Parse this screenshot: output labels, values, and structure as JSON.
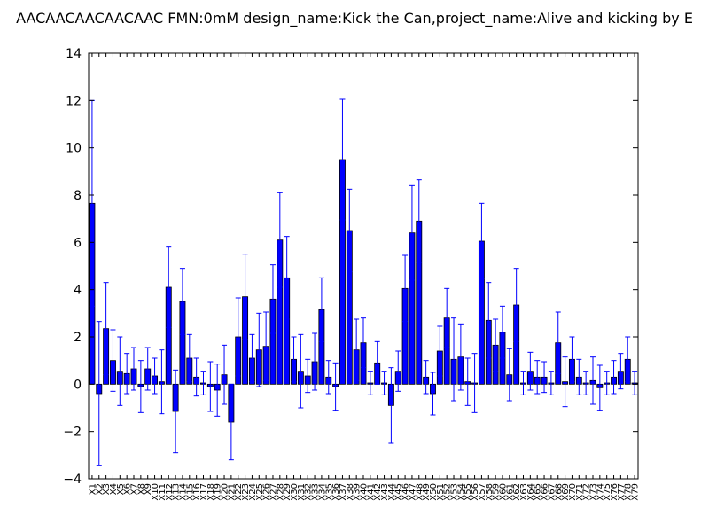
{
  "chart_data": {
    "type": "bar",
    "title": "AACAACAACAACAAC  FMN:0mM  design_name:Kick the Can,project_name:Alive and kicking by E",
    "xlabel": "",
    "ylabel": "",
    "ylim": [
      -4,
      14
    ],
    "yticks": [
      -4,
      -2,
      0,
      2,
      4,
      6,
      8,
      10,
      12,
      14
    ],
    "grid": false,
    "bar_color": "#0000ff",
    "error_color": "#0000ff",
    "categories": [
      "X1",
      "X2",
      "X3",
      "X4",
      "X5",
      "X6",
      "X7",
      "X8",
      "X9",
      "X10",
      "X11",
      "X12",
      "X13",
      "X14",
      "X15",
      "X16",
      "X17",
      "X18",
      "X19",
      "X20",
      "X21",
      "X22",
      "X23",
      "X24",
      "X25",
      "X26",
      "X27",
      "X28",
      "X29",
      "X30",
      "X31",
      "X32",
      "X33",
      "X34",
      "X35",
      "X36",
      "X37",
      "X38",
      "X39",
      "X40",
      "X41",
      "X42",
      "X43",
      "X44",
      "X45",
      "X46",
      "X47",
      "X48",
      "X49",
      "X50",
      "X51",
      "X52",
      "X53",
      "X54",
      "X55",
      "X56",
      "X57",
      "X58",
      "X59",
      "X60",
      "X61",
      "X62",
      "X63",
      "X64",
      "X65",
      "X66",
      "X67",
      "X68",
      "X69",
      "X70",
      "X71",
      "X72",
      "X73",
      "X74",
      "X75",
      "X76",
      "X77",
      "X78",
      "X79"
    ],
    "values": [
      7.65,
      -0.4,
      2.35,
      1.0,
      0.55,
      0.45,
      0.65,
      -0.1,
      0.65,
      0.35,
      0.1,
      4.1,
      -1.15,
      3.5,
      1.1,
      0.3,
      0.05,
      -0.1,
      -0.25,
      0.4,
      -1.6,
      2.0,
      3.7,
      1.1,
      1.45,
      1.6,
      3.6,
      6.1,
      4.5,
      1.05,
      0.55,
      0.35,
      0.95,
      3.15,
      0.3,
      -0.1,
      9.5,
      6.5,
      1.45,
      1.75,
      0.05,
      0.9,
      0.05,
      -0.9,
      0.55,
      4.05,
      6.4,
      6.9,
      0.3,
      -0.4,
      1.4,
      2.8,
      1.05,
      1.15,
      0.1,
      0.05,
      6.05,
      2.7,
      1.65,
      2.2,
      0.4,
      3.35,
      0.05,
      0.55,
      0.3,
      0.3,
      0.05,
      1.75,
      0.1,
      1.05,
      0.3,
      0.05,
      0.15,
      -0.15,
      0.05,
      0.3,
      0.55,
      1.05,
      0.05
    ],
    "errors": [
      4.35,
      3.05,
      1.95,
      1.3,
      1.45,
      0.85,
      0.9,
      1.1,
      0.9,
      0.75,
      1.35,
      1.7,
      1.75,
      1.4,
      1.0,
      0.8,
      0.5,
      1.05,
      1.1,
      1.25,
      1.6,
      1.65,
      1.8,
      1.0,
      1.55,
      1.45,
      1.45,
      2.0,
      1.75,
      0.95,
      1.55,
      0.7,
      1.2,
      1.35,
      0.7,
      1.0,
      2.55,
      1.75,
      1.3,
      1.05,
      0.5,
      0.9,
      0.5,
      1.6,
      0.85,
      1.4,
      2.0,
      1.75,
      0.7,
      0.9,
      1.05,
      1.25,
      1.75,
      1.4,
      1.0,
      1.25,
      1.6,
      1.6,
      1.1,
      1.1,
      1.1,
      1.55,
      0.5,
      0.8,
      0.7,
      0.65,
      0.5,
      1.3,
      1.05,
      0.95,
      0.75,
      0.5,
      1.0,
      0.95,
      0.5,
      0.7,
      0.75,
      0.95,
      0.5
    ]
  }
}
